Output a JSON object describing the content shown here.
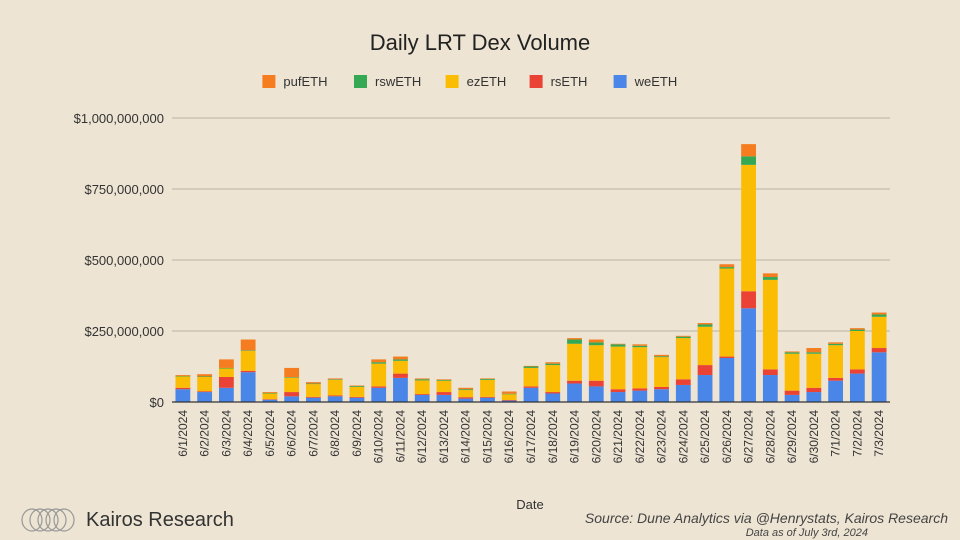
{
  "chart_data": {
    "type": "stacked-bar",
    "title": "Daily LRT Dex Volume",
    "xlabel": "Date",
    "ylabel": "",
    "ylim": [
      0,
      1000000000
    ],
    "yticks": [
      {
        "value": 0,
        "label": "$0"
      },
      {
        "value": 250000000,
        "label": "$250,000,000"
      },
      {
        "value": 500000000,
        "label": "$500,000,000"
      },
      {
        "value": 750000000,
        "label": "$750,000,000"
      },
      {
        "value": 1000000000,
        "label": "$1,000,000,000"
      }
    ],
    "legend_position": "top-center",
    "legend": [
      {
        "name": "pufETH",
        "color": "#f57c1f"
      },
      {
        "name": "rswETH",
        "color": "#34a853"
      },
      {
        "name": "ezETH",
        "color": "#fbbc04"
      },
      {
        "name": "rsETH",
        "color": "#ea4335"
      },
      {
        "name": "weETH",
        "color": "#4a86e8"
      }
    ],
    "categories": [
      "6/1/2024",
      "6/2/2024",
      "6/3/2024",
      "6/4/2024",
      "6/5/2024",
      "6/6/2024",
      "6/7/2024",
      "6/8/2024",
      "6/9/2024",
      "6/10/2024",
      "6/11/2024",
      "6/12/2024",
      "6/13/2024",
      "6/14/2024",
      "6/15/2024",
      "6/16/2024",
      "6/17/2024",
      "6/18/2024",
      "6/19/2024",
      "6/20/2024",
      "6/21/2024",
      "6/22/2024",
      "6/23/2024",
      "6/24/2024",
      "6/25/2024",
      "6/26/2024",
      "6/27/2024",
      "6/28/2024",
      "6/29/2024",
      "6/30/2024",
      "7/1/2024",
      "7/2/2024",
      "7/3/2024"
    ],
    "series": [
      {
        "name": "weETH",
        "color": "#4a86e8",
        "values": [
          45000000,
          35000000,
          50000000,
          105000000,
          8000000,
          20000000,
          15000000,
          20000000,
          15000000,
          50000000,
          85000000,
          25000000,
          25000000,
          12000000,
          15000000,
          5000000,
          50000000,
          30000000,
          65000000,
          55000000,
          35000000,
          40000000,
          45000000,
          60000000,
          95000000,
          155000000,
          330000000,
          95000000,
          25000000,
          35000000,
          75000000,
          100000000,
          175000000
        ]
      },
      {
        "name": "rsETH",
        "color": "#ea4335",
        "values": [
          5000000,
          3000000,
          38000000,
          5000000,
          2000000,
          15000000,
          3000000,
          3000000,
          3000000,
          5000000,
          15000000,
          3000000,
          10000000,
          5000000,
          3000000,
          2000000,
          5000000,
          5000000,
          10000000,
          20000000,
          10000000,
          8000000,
          8000000,
          20000000,
          35000000,
          5000000,
          60000000,
          20000000,
          15000000,
          15000000,
          10000000,
          15000000,
          15000000
        ]
      },
      {
        "name": "ezETH",
        "color": "#fbbc04",
        "values": [
          40000000,
          50000000,
          30000000,
          70000000,
          20000000,
          50000000,
          45000000,
          55000000,
          35000000,
          80000000,
          45000000,
          48000000,
          40000000,
          25000000,
          60000000,
          20000000,
          65000000,
          95000000,
          130000000,
          125000000,
          150000000,
          145000000,
          105000000,
          145000000,
          135000000,
          310000000,
          445000000,
          315000000,
          130000000,
          120000000,
          115000000,
          135000000,
          110000000
        ]
      },
      {
        "name": "rswETH",
        "color": "#34a853",
        "values": [
          2000000,
          2000000,
          2000000,
          2000000,
          2000000,
          2000000,
          2000000,
          2000000,
          3000000,
          5000000,
          5000000,
          4000000,
          3000000,
          3000000,
          3000000,
          2000000,
          5000000,
          5000000,
          15000000,
          10000000,
          8000000,
          5000000,
          3000000,
          5000000,
          8000000,
          5000000,
          30000000,
          10000000,
          5000000,
          5000000,
          5000000,
          5000000,
          8000000
        ]
      },
      {
        "name": "pufETH",
        "color": "#f57c1f",
        "values": [
          3000000,
          8000000,
          30000000,
          38000000,
          3000000,
          33000000,
          5000000,
          3000000,
          2000000,
          10000000,
          10000000,
          3000000,
          2000000,
          5000000,
          2000000,
          8000000,
          2000000,
          5000000,
          5000000,
          10000000,
          2000000,
          5000000,
          5000000,
          3000000,
          5000000,
          10000000,
          43000000,
          13000000,
          3000000,
          15000000,
          5000000,
          5000000,
          7000000
        ]
      }
    ]
  },
  "footer": {
    "brand": "Kairos Research",
    "source": "Source: Dune Analytics via @Henrystats, Kairos Research",
    "as_of": "Data as of July 3rd, 2024"
  }
}
